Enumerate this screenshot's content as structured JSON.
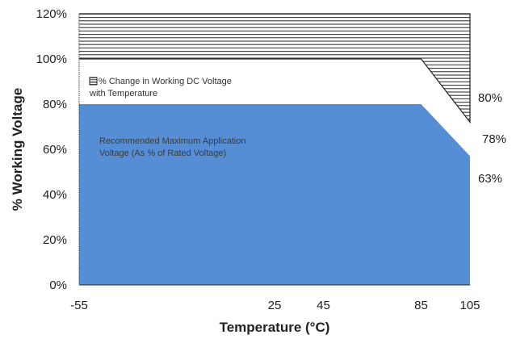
{
  "chart_data": {
    "type": "area",
    "xlabel": "Temperature (°C)",
    "ylabel": "% Working Voltage",
    "xlim": [
      -55,
      105
    ],
    "ylim": [
      0,
      120
    ],
    "x_ticks": [
      -55,
      25,
      45,
      85,
      105
    ],
    "x_tick_labels": [
      "-55",
      "25",
      "45",
      "85",
      "105"
    ],
    "y_ticks": [
      0,
      20,
      40,
      60,
      80,
      100,
      120
    ],
    "y_tick_labels": [
      "0%",
      "20%",
      "40%",
      "60%",
      "80%",
      "100%",
      "120%"
    ],
    "series": [
      {
        "name": "Recommended Maximum Application Voltage (As % of Rated Voltage)",
        "style": "solid-fill",
        "color": "#558ed5",
        "x": [
          -55,
          85,
          105
        ],
        "y": [
          80,
          80,
          57
        ]
      },
      {
        "name": "% Change in Working DC Voltage with Temperature",
        "style": "white-band",
        "color": "#ffffff",
        "x": [
          -55,
          85,
          105
        ],
        "y": [
          100,
          100,
          72
        ]
      },
      {
        "name": "",
        "style": "hatched",
        "color": "#222222",
        "x": [
          -55,
          85,
          105
        ],
        "y": [
          120,
          120,
          120
        ]
      }
    ],
    "legend": {
      "marker_label_line1": "% Change in Working DC Voltage",
      "marker_label_line2": "with Temperature",
      "fill_label_line1": "Recommended Maximum Application",
      "fill_label_line2": "Voltage (As % of Rated Voltage)"
    },
    "side_labels": [
      "80%",
      "78%",
      "63%"
    ],
    "grid": false
  }
}
